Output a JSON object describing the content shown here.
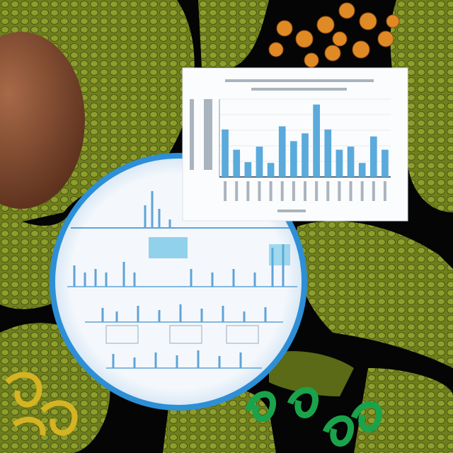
{
  "chart_data": {
    "type": "bar",
    "values": [
      61,
      35,
      19,
      39,
      18,
      65,
      46,
      56,
      93,
      61,
      35,
      39,
      18,
      52,
      35
    ],
    "color": "#5aaadc",
    "ylim": [
      0,
      100
    ],
    "grid": true
  }
}
